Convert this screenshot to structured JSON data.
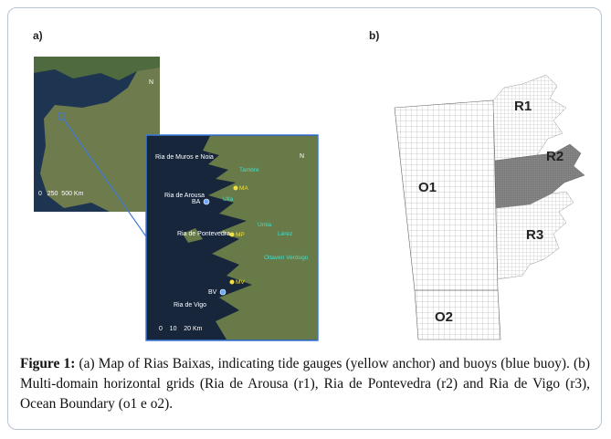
{
  "panel_a": {
    "label": "a)",
    "overview": {
      "north": "N",
      "scale": "0   250  500 Km"
    },
    "inset": {
      "north": "N",
      "scale": "0    10    20 Km",
      "places": [
        "Ria de Muros e Noia",
        "Ria de Arousa",
        "Ria de Pontevedra",
        "Ria de Vigo"
      ],
      "rivers": [
        "Tambre",
        "Ulla",
        "Umia",
        "Lérez",
        "Oitaven Verdugo"
      ],
      "gauges": [
        "MA",
        "MP",
        "MV"
      ],
      "buoys": [
        "BA",
        "BV"
      ]
    }
  },
  "panel_b": {
    "label": "b)",
    "domains": [
      "R1",
      "R2",
      "R3",
      "O1",
      "O2"
    ]
  },
  "caption": {
    "label": "Figure 1:",
    "text": "(a) Map of Rias Baixas, indicating tide gauges (yellow anchor) and buoys (blue buoy). (b) Multi-domain horizontal grids (Ria de Arousa (r1), Ria de Pontevedra (r2) and Ria de Vigo (r3), Ocean Boundary (o1 e o2)."
  }
}
